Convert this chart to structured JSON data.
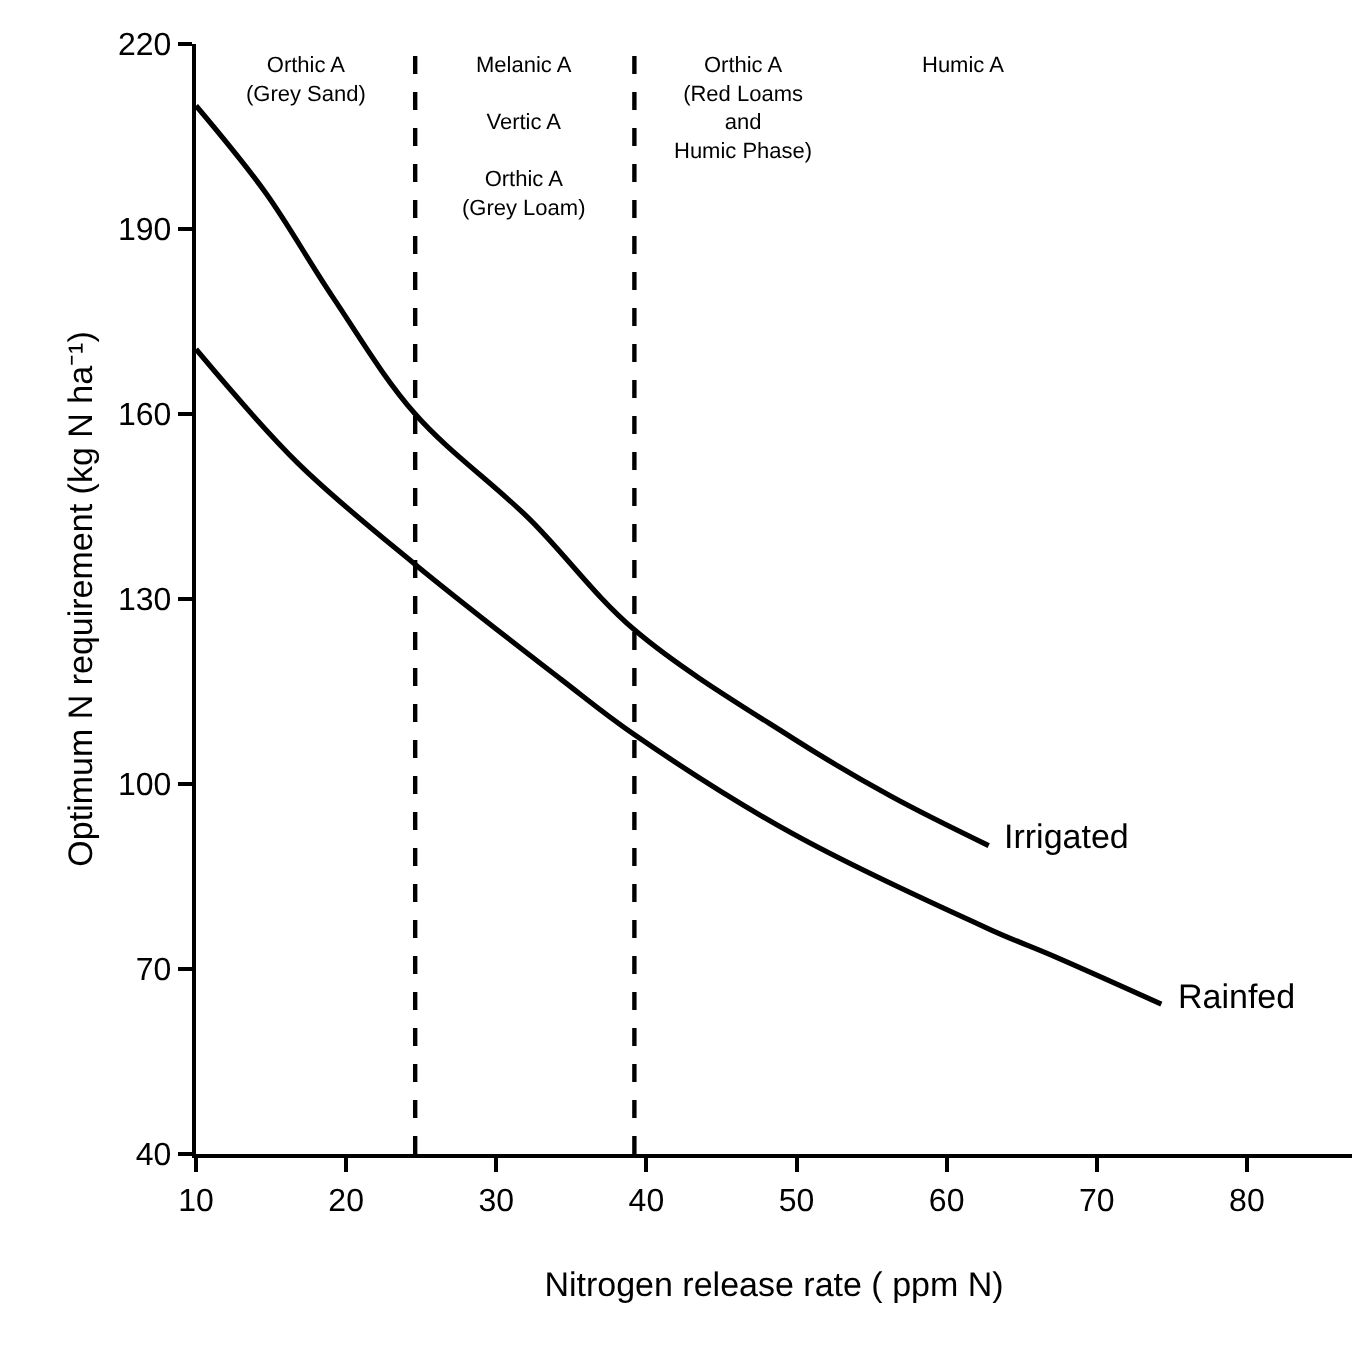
{
  "chart_data": {
    "type": "line",
    "xlabel": "Nitrogen release rate ( ppm N)",
    "ylabel": "Optimum N requirement (kg N ha⁻¹)",
    "xlim": [
      10,
      87
    ],
    "xticks": [
      10,
      20,
      30,
      40,
      50,
      60,
      70,
      80
    ],
    "ylim": [
      40,
      220
    ],
    "yticks": [
      40,
      70,
      100,
      130,
      160,
      190,
      220
    ],
    "legend": false,
    "marker": "none",
    "line_style": "solid",
    "series": [
      {
        "name": "Irrigated",
        "color": "#000000",
        "x": [
          10,
          14.6,
          19.1,
          24.6,
          32.2,
          39.2,
          49.7,
          56.3,
          62.8
        ],
        "values": [
          210,
          196,
          179,
          160,
          143,
          125,
          107.5,
          98,
          90
        ]
      },
      {
        "name": "Rainfed",
        "color": "#000000",
        "x": [
          10,
          16.8,
          24.6,
          34.3,
          39.2,
          49.7,
          62.9,
          67.2,
          74.3
        ],
        "values": [
          170.5,
          152,
          135.6,
          117,
          108,
          92,
          76.4,
          72,
          64.3
        ]
      }
    ],
    "ref_lines": [
      {
        "axis": "x",
        "value": 24.6,
        "color": "#000000",
        "line_style": "dashed"
      },
      {
        "axis": "x",
        "value": 39.2,
        "color": "#000000",
        "line_style": "dashed"
      }
    ],
    "annotations": [
      "Orthic A\n(Grey Sand)",
      "Melanic A\n\nVertic A\n\nOrthic A\n(Grey Loam)",
      "Orthic A\n(Red Loams\nand\nHumic Phase)",
      "Humic A"
    ]
  }
}
